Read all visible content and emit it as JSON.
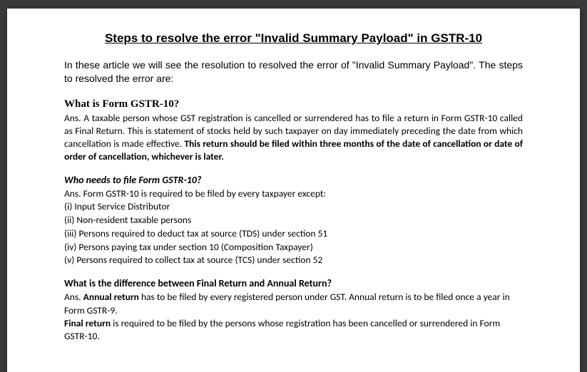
{
  "document": {
    "title": "Steps to resolve the error \"Invalid Summary Payload\" in GSTR-10",
    "intro": "In these article we will see the resolution to resolved the error of \"Invalid Summary Payload\". The steps to resolved the error are:",
    "section1": {
      "heading": "What is Form GSTR-10?",
      "text_plain": "Ans. A taxable person whose GST registration is cancelled or surrendered has to file a return in Form GSTR-10 called as Final Return. This is statement of stocks held by such taxpayer on day immediately preceding the date from which cancellation is made effective. ",
      "text_bold": "This return should be filed within three months of the date of cancellation or date of order of cancellation, whichever is later."
    },
    "section2": {
      "heading": "Who needs to file Form GSTR-10?",
      "intro_prefix": "Ans.",
      "intro_rest": " Form GSTR-10 is required to be filed by every taxpayer except:",
      "items": [
        "(i) Input Service Distributor",
        "(ii) Non-resident taxable persons",
        "(iii) Persons required to deduct tax at source (TDS) under section 51",
        "(iv) Persons paying tax under section 10 (Composition Taxpayer)",
        "(v) Persons required to collect tax at source (TCS) under section 52"
      ]
    },
    "section3": {
      "heading": "What is the difference between Final Return and Annual Return?",
      "line1_prefix": "Ans. ",
      "line1_bold": "Annual return",
      "line1_rest": " has to be filed by every registered person under GST. Annual return is to be filed once a year in Form GSTR-9.",
      "line2_bold": "Final return",
      "line2_rest": " is required to be filed by the persons whose registration has been cancelled or surrendered in Form GSTR-10."
    }
  },
  "style": {
    "background_color": "#3a3a3a",
    "page_color": "#ffffff",
    "text_color": "#000000",
    "title_fontsize": 17,
    "body_fontsize": 13.5,
    "heading_serif_fontsize": 15,
    "intro_fontsize": 14
  }
}
